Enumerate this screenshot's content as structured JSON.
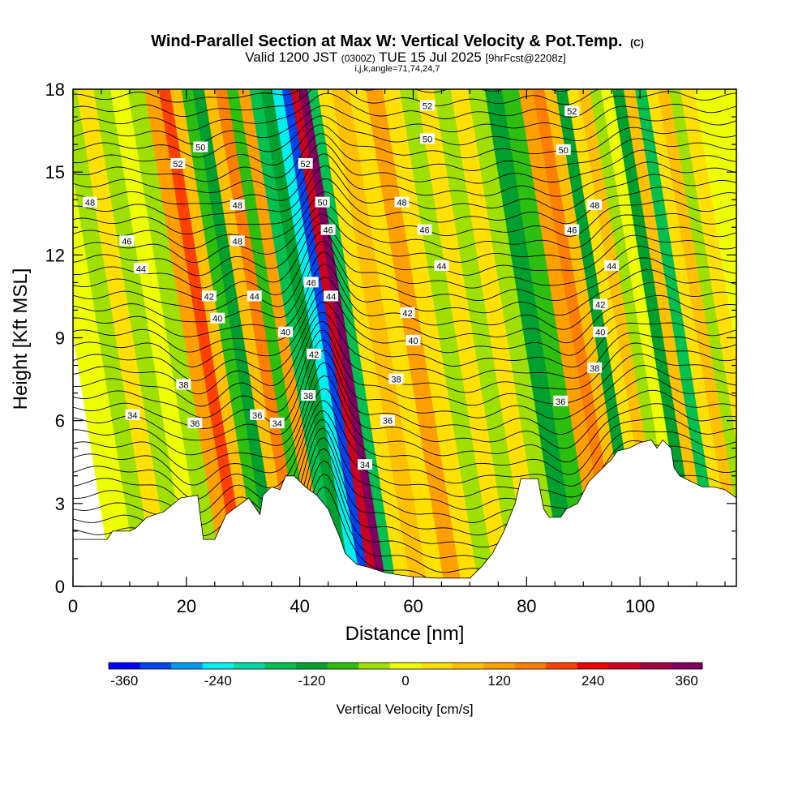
{
  "chart_data": {
    "type": "heatmap",
    "title": "Wind-Parallel Section at Max W: Vertical Velocity & Pot.Temp.",
    "title_mark": "(C)",
    "subtitle_prefix": "Valid 1200 JST",
    "subtitle_utc": "(0300Z)",
    "subtitle_date": "TUE 15 Jul 2025",
    "subtitle_fcst": "[9hrFcst@2208z]",
    "subtitle_indices": "i,j,k,angle=71,74,24,7",
    "xlabel": "Distance [nm]",
    "ylabel": "Height [Kft MSL]",
    "xlim": [
      0,
      117
    ],
    "ylim": [
      0,
      18
    ],
    "x_ticks": [
      0,
      20,
      40,
      60,
      80,
      100
    ],
    "y_ticks": [
      0,
      3,
      6,
      9,
      12,
      15,
      18
    ],
    "colorbar": {
      "label": "Vertical Velocity [cm/s]",
      "min": -380,
      "max": 380,
      "step": 40,
      "tick_labels": [
        -360,
        -240,
        -120,
        0,
        120,
        240,
        360
      ],
      "colors": [
        "#0000ff",
        "#0044ee",
        "#0099ee",
        "#00eeee",
        "#00d8a0",
        "#00c050",
        "#00a030",
        "#2ebe10",
        "#a0e000",
        "#eeff00",
        "#ffe000",
        "#ffc000",
        "#ffa000",
        "#ff7f00",
        "#ff4000",
        "#ee0000",
        "#cc0020",
        "#a00040",
        "#800060"
      ]
    },
    "terrain_profile": [
      [
        0,
        1.7
      ],
      [
        6,
        1.7
      ],
      [
        7,
        2.0
      ],
      [
        10,
        2.0
      ],
      [
        11,
        2.1
      ],
      [
        13,
        2.5
      ],
      [
        16,
        2.7
      ],
      [
        19,
        3.2
      ],
      [
        22,
        3.3
      ],
      [
        23,
        1.7
      ],
      [
        25,
        1.7
      ],
      [
        27,
        2.6
      ],
      [
        29,
        2.9
      ],
      [
        31,
        3.2
      ],
      [
        33,
        2.6
      ],
      [
        33.5,
        3.3
      ],
      [
        35,
        3.6
      ],
      [
        36.5,
        3.5
      ],
      [
        37.5,
        4.0
      ],
      [
        39,
        4.0
      ],
      [
        41,
        3.6
      ],
      [
        43,
        3.3
      ],
      [
        45,
        2.8
      ],
      [
        46,
        2.3
      ],
      [
        47,
        1.8
      ],
      [
        48,
        1.2
      ],
      [
        50,
        0.8
      ],
      [
        52,
        0.7
      ],
      [
        55,
        0.5
      ],
      [
        58,
        0.4
      ],
      [
        60,
        0.35
      ],
      [
        64,
        0.3
      ],
      [
        68,
        0.3
      ],
      [
        70,
        0.3
      ],
      [
        72,
        0.7
      ],
      [
        74,
        1.2
      ],
      [
        76,
        2.0
      ],
      [
        78,
        3.0
      ],
      [
        79,
        3.9
      ],
      [
        82,
        3.9
      ],
      [
        83,
        2.8
      ],
      [
        84,
        2.5
      ],
      [
        86,
        2.5
      ],
      [
        87,
        2.8
      ],
      [
        89,
        3.0
      ],
      [
        91,
        3.8
      ],
      [
        93,
        4.2
      ],
      [
        95,
        4.6
      ],
      [
        96,
        4.9
      ],
      [
        98,
        5.0
      ],
      [
        100,
        5.2
      ],
      [
        102,
        5.3
      ],
      [
        103,
        5.0
      ],
      [
        104,
        5.3
      ],
      [
        105.5,
        5.0
      ],
      [
        106,
        4.3
      ],
      [
        107,
        4.0
      ],
      [
        109,
        3.8
      ],
      [
        111,
        3.6
      ],
      [
        113,
        3.6
      ],
      [
        115,
        3.5
      ],
      [
        117,
        3.2
      ]
    ],
    "velocity_field": [
      {
        "x": 1,
        "value": 10
      },
      {
        "x": 4,
        "value": -40
      },
      {
        "x": 7,
        "value": 20
      },
      {
        "x": 10,
        "value": -30
      },
      {
        "x": 13,
        "value": 10
      },
      {
        "x": 16,
        "value": -60
      },
      {
        "x": 19,
        "value": 110
      },
      {
        "x": 21,
        "value": 200
      },
      {
        "x": 23,
        "value": 60
      },
      {
        "x": 25,
        "value": -100
      },
      {
        "x": 27,
        "value": -130
      },
      {
        "x": 29,
        "value": 60
      },
      {
        "x": 31,
        "value": 140
      },
      {
        "x": 33,
        "value": -80
      },
      {
        "x": 35,
        "value": 100
      },
      {
        "x": 37,
        "value": -170
      },
      {
        "x": 39,
        "value": -120
      },
      {
        "x": 41,
        "value": -230
      },
      {
        "x": 42.5,
        "value": -340
      },
      {
        "x": 44,
        "value": 290
      },
      {
        "x": 45.5,
        "value": 370
      },
      {
        "x": 47,
        "value": -150
      },
      {
        "x": 49,
        "value": 40
      },
      {
        "x": 52,
        "value": 70
      },
      {
        "x": 55,
        "value": 20
      },
      {
        "x": 58,
        "value": 100
      },
      {
        "x": 61,
        "value": 40
      },
      {
        "x": 64,
        "value": -30
      },
      {
        "x": 67,
        "value": 50
      },
      {
        "x": 70,
        "value": -40
      },
      {
        "x": 73,
        "value": 30
      },
      {
        "x": 76,
        "value": -60
      },
      {
        "x": 79,
        "value": -120
      },
      {
        "x": 82,
        "value": -80
      },
      {
        "x": 85,
        "value": 130
      },
      {
        "x": 87,
        "value": 170
      },
      {
        "x": 89,
        "value": 60
      },
      {
        "x": 91,
        "value": -110
      },
      {
        "x": 93,
        "value": 40
      },
      {
        "x": 95,
        "value": 90
      },
      {
        "x": 97,
        "value": -40
      },
      {
        "x": 99,
        "value": 10
      },
      {
        "x": 101,
        "value": -110
      },
      {
        "x": 103,
        "value": 60
      },
      {
        "x": 105,
        "value": -170
      },
      {
        "x": 107,
        "value": 30
      },
      {
        "x": 109,
        "value": 70
      },
      {
        "x": 111,
        "value": -40
      },
      {
        "x": 113,
        "value": 40
      },
      {
        "x": 116,
        "value": -20
      }
    ],
    "theta_contour_labels": [
      {
        "text": "52",
        "x": 62.5,
        "y": 17.4
      },
      {
        "text": "52",
        "x": 88,
        "y": 17.2
      },
      {
        "text": "50",
        "x": 62.5,
        "y": 16.2
      },
      {
        "text": "50",
        "x": 86.5,
        "y": 15.8
      },
      {
        "text": "52",
        "x": 18.5,
        "y": 15.3
      },
      {
        "text": "50",
        "x": 22.5,
        "y": 15.9
      },
      {
        "text": "52",
        "x": 41,
        "y": 15.3
      },
      {
        "text": "48",
        "x": 3,
        "y": 13.9
      },
      {
        "text": "48",
        "x": 29,
        "y": 13.8
      },
      {
        "text": "50",
        "x": 44,
        "y": 13.9
      },
      {
        "text": "48",
        "x": 58,
        "y": 13.9
      },
      {
        "text": "48",
        "x": 92,
        "y": 13.8
      },
      {
        "text": "46",
        "x": 9.5,
        "y": 12.5
      },
      {
        "text": "48",
        "x": 29,
        "y": 12.5
      },
      {
        "text": "46",
        "x": 45,
        "y": 12.9
      },
      {
        "text": "46",
        "x": 62,
        "y": 12.9
      },
      {
        "text": "46",
        "x": 88,
        "y": 12.9
      },
      {
        "text": "44",
        "x": 12,
        "y": 11.5
      },
      {
        "text": "44",
        "x": 65,
        "y": 11.6
      },
      {
        "text": "44",
        "x": 95,
        "y": 11.6
      },
      {
        "text": "42",
        "x": 24,
        "y": 10.5
      },
      {
        "text": "44",
        "x": 32,
        "y": 10.5
      },
      {
        "text": "46",
        "x": 42,
        "y": 11.0
      },
      {
        "text": "44",
        "x": 45.5,
        "y": 10.5
      },
      {
        "text": "42",
        "x": 93,
        "y": 10.2
      },
      {
        "text": "42",
        "x": 59,
        "y": 9.9
      },
      {
        "text": "40",
        "x": 25.5,
        "y": 9.7
      },
      {
        "text": "40",
        "x": 37.5,
        "y": 9.2
      },
      {
        "text": "40",
        "x": 60,
        "y": 8.9
      },
      {
        "text": "40",
        "x": 93,
        "y": 9.2
      },
      {
        "text": "42",
        "x": 42.5,
        "y": 8.4
      },
      {
        "text": "38",
        "x": 92,
        "y": 7.9
      },
      {
        "text": "38",
        "x": 57,
        "y": 7.5
      },
      {
        "text": "38",
        "x": 19.5,
        "y": 7.3
      },
      {
        "text": "38",
        "x": 41.5,
        "y": 6.9
      },
      {
        "text": "36",
        "x": 86,
        "y": 6.7
      },
      {
        "text": "34",
        "x": 10.5,
        "y": 6.2
      },
      {
        "text": "36",
        "x": 32.5,
        "y": 6.2
      },
      {
        "text": "36",
        "x": 55.5,
        "y": 6.0
      },
      {
        "text": "36",
        "x": 21.5,
        "y": 5.9
      },
      {
        "text": "34",
        "x": 36,
        "y": 5.9
      },
      {
        "text": "34",
        "x": 51.5,
        "y": 4.4
      }
    ]
  }
}
